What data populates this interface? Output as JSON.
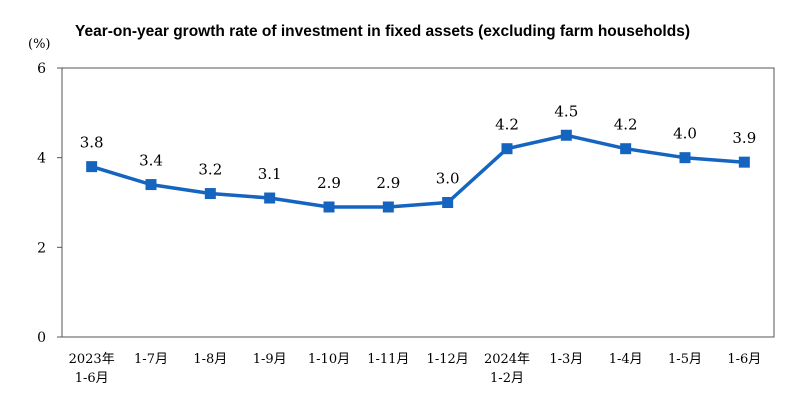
{
  "chart_data": {
    "type": "line",
    "title": "Year-on-year growth rate of investment in fixed assets (excluding farm households)",
    "unit_label": "(%)",
    "xlabel": "",
    "ylabel": "",
    "ylim": [
      0,
      6
    ],
    "yticks": [
      0,
      2,
      4,
      6
    ],
    "grid": false,
    "categories": [
      [
        "2023年",
        "1-6月"
      ],
      [
        "1-7月"
      ],
      [
        "1-8月"
      ],
      [
        "1-9月"
      ],
      [
        "1-10月"
      ],
      [
        "1-11月"
      ],
      [
        "1-12月"
      ],
      [
        "2024年",
        "1-2月"
      ],
      [
        "1-3月"
      ],
      [
        "1-4月"
      ],
      [
        "1-5月"
      ],
      [
        "1-6月"
      ]
    ],
    "series": [
      {
        "name": "Year-on-year growth rate",
        "color": "#1565C0",
        "values": [
          3.8,
          3.4,
          3.2,
          3.1,
          2.9,
          2.9,
          3.0,
          4.2,
          4.5,
          4.2,
          4.0,
          3.9
        ],
        "labels": [
          "3.8",
          "3.4",
          "3.2",
          "3.1",
          "2.9",
          "2.9",
          "3.0",
          "4.2",
          "4.5",
          "4.2",
          "4.0",
          "3.9"
        ]
      }
    ]
  }
}
